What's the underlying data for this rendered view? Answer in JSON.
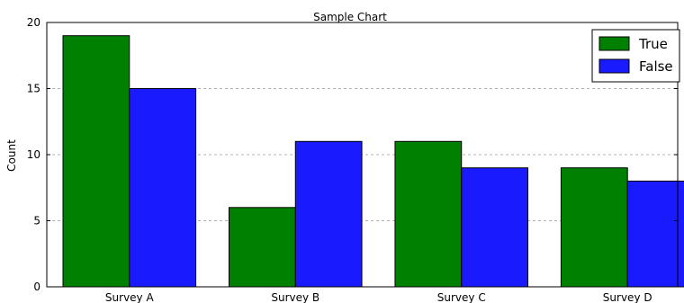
{
  "chart_data": {
    "type": "bar",
    "title": "Sample Chart",
    "xlabel": "",
    "ylabel": "Count",
    "categories": [
      "Survey A",
      "Survey B",
      "Survey C",
      "Survey D"
    ],
    "series": [
      {
        "name": "True",
        "values": [
          19,
          6,
          11,
          9
        ],
        "color": "#008000"
      },
      {
        "name": "False",
        "values": [
          15,
          11,
          9,
          8
        ],
        "color": "#1a1aff"
      }
    ],
    "ylim": [
      0,
      20
    ],
    "yticks": [
      0,
      5,
      10,
      15,
      20
    ],
    "grid": "horizontal dashed",
    "legend_position": "top-right"
  }
}
